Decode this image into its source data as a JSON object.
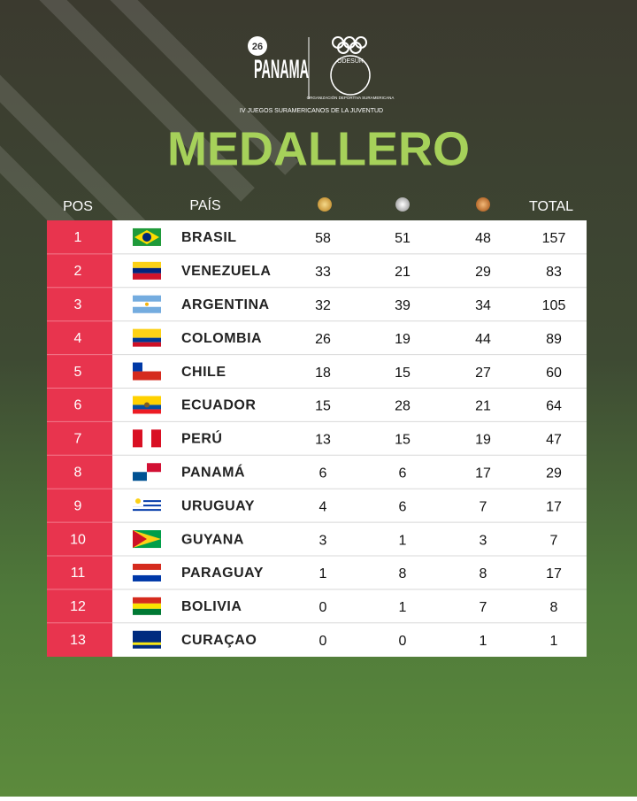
{
  "header": {
    "logo_number": "26",
    "logo_word": "PANAMA",
    "games": "IV JUEGOS SURAMERICANOS DE LA JUVENTUD",
    "org": "ODESUR",
    "org_full": "ORGANIZACIÓN DEPORTIVA SURAMERICANA"
  },
  "title": "MEDALLERO",
  "table": {
    "columns": [
      "POS",
      "PAÍS",
      "TOTAL"
    ],
    "rows": [
      [
        1,
        "BRASIL",
        58,
        51,
        48,
        157
      ],
      [
        2,
        "VENEZUELA",
        33,
        21,
        29,
        83
      ],
      [
        3,
        "ARGENTINA",
        32,
        39,
        34,
        105
      ],
      [
        4,
        "COLOMBIA",
        26,
        19,
        44,
        89
      ],
      [
        5,
        "CHILE",
        18,
        15,
        27,
        60
      ],
      [
        6,
        "ECUADOR",
        15,
        28,
        21,
        64
      ],
      [
        7,
        "PERÚ",
        13,
        15,
        19,
        47
      ],
      [
        8,
        "PANAMÁ",
        6,
        6,
        17,
        29
      ],
      [
        9,
        "URUGUAY",
        4,
        6,
        7,
        17
      ],
      [
        10,
        "GUYANA",
        3,
        1,
        3,
        7
      ],
      [
        11,
        "PARAGUAY",
        1,
        8,
        8,
        17
      ],
      [
        12,
        "BOLIVIA",
        0,
        1,
        7,
        8
      ],
      [
        13,
        "CURAÇAO",
        0,
        0,
        1,
        1
      ]
    ]
  }
}
